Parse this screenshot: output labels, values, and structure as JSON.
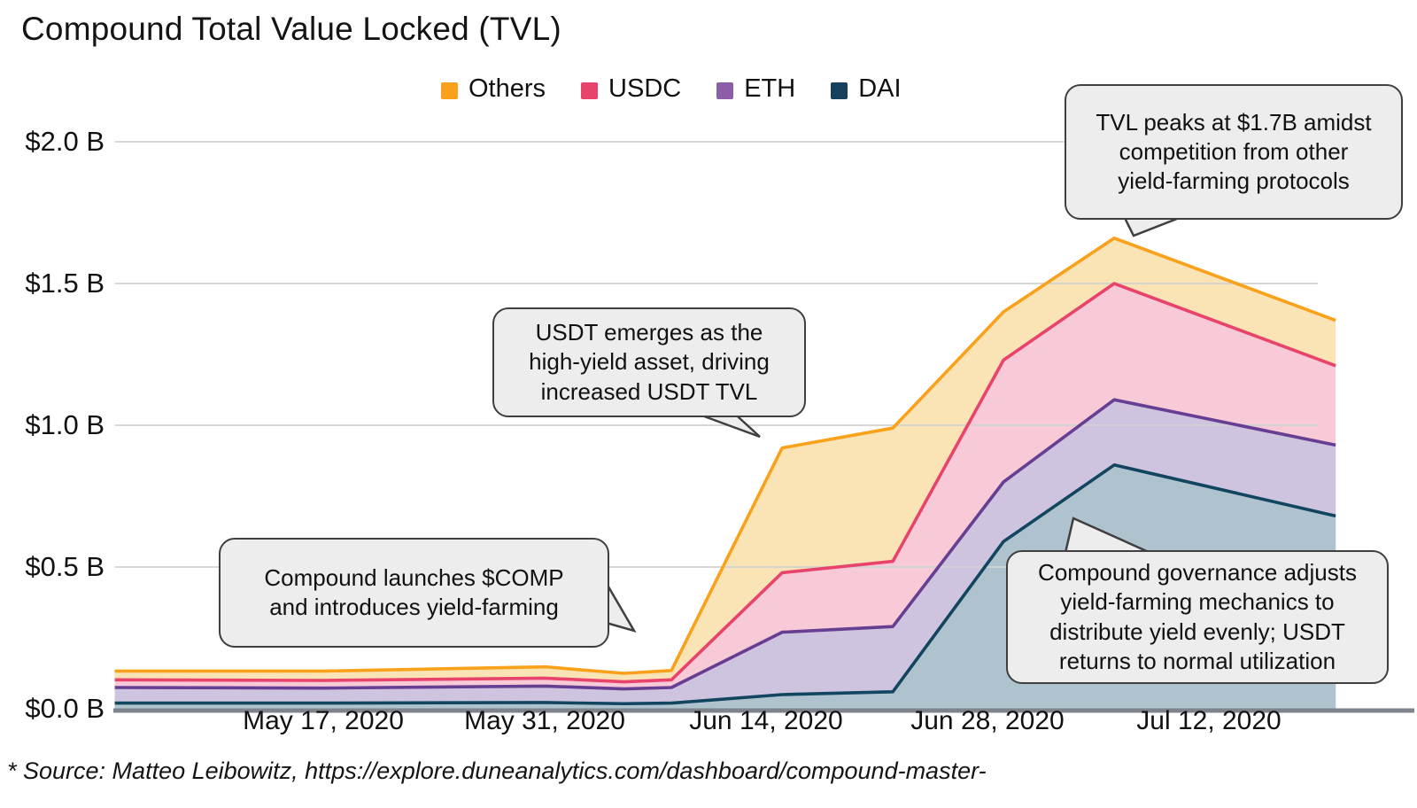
{
  "title": "Compound Total Value Locked (TVL)",
  "legend": {
    "items": [
      {
        "label": "Others",
        "color": "#F9A11B"
      },
      {
        "label": "USDC",
        "color": "#E8436B"
      },
      {
        "label": "ETH",
        "color": "#8A5FA8"
      },
      {
        "label": "DAI",
        "color": "#17405C"
      }
    ]
  },
  "chart_data": {
    "type": "area",
    "stacked": true,
    "title": "Compound Total Value Locked (TVL)",
    "unit": "$ billions",
    "ylim": [
      0,
      2.0
    ],
    "y_grid_values": [
      0.5,
      1.0,
      1.5,
      2.0
    ],
    "y_tick_labels": [
      "$2.0 B",
      "$1.5 B",
      "$1.0 B",
      "$0.5 B",
      "$0.0 B"
    ],
    "x_tick_labels": [
      "May 17, 2020",
      "May 31, 2020",
      "Jun 14, 2020",
      "Jun 28, 2020",
      "Jul 12, 2020"
    ],
    "x_tick_days": [
      12,
      26,
      40,
      54,
      68
    ],
    "x_days": [
      -1.2,
      12,
      26,
      31,
      34,
      41,
      48,
      55,
      62,
      76
    ],
    "series": [
      {
        "name": "DAI",
        "line": "#12455F",
        "fill": "#AFC3CE",
        "values": [
          0.02,
          0.02,
          0.022,
          0.018,
          0.02,
          0.05,
          0.06,
          0.59,
          0.86,
          0.68
        ]
      },
      {
        "name": "ETH",
        "line": "#663F93",
        "fill": "#CFC4DF",
        "values": [
          0.055,
          0.053,
          0.058,
          0.052,
          0.055,
          0.22,
          0.23,
          0.21,
          0.23,
          0.25
        ]
      },
      {
        "name": "USDC",
        "line": "#E8436B",
        "fill": "#F8C9D6",
        "values": [
          0.027,
          0.027,
          0.028,
          0.025,
          0.027,
          0.21,
          0.23,
          0.43,
          0.41,
          0.28
        ]
      },
      {
        "name": "Others",
        "line": "#F9A11B",
        "fill": "#FAE3B4",
        "values": [
          0.031,
          0.033,
          0.04,
          0.03,
          0.033,
          0.44,
          0.47,
          0.17,
          0.16,
          0.16
        ]
      }
    ],
    "legend_position": "top",
    "grid": true
  },
  "annotations": {
    "peak": {
      "lines": [
        "TVL peaks at $1.7B amidst",
        "competition from other",
        "yield-farming protocols"
      ]
    },
    "usdt": {
      "lines": [
        "USDT emerges as the",
        "high-yield asset, driving",
        "increased USDT TVL"
      ]
    },
    "comp": {
      "lines": [
        "Compound launches $COMP",
        "and introduces yield-farming"
      ]
    },
    "gov": {
      "lines": [
        "Compound governance adjusts",
        "yield-farming mechanics to",
        "distribute yield evenly; USDT",
        "returns to normal utilization"
      ]
    }
  },
  "footer": "* Source: Matteo Leibowitz, https://explore.duneanalytics.com/dashboard/compound-master-"
}
